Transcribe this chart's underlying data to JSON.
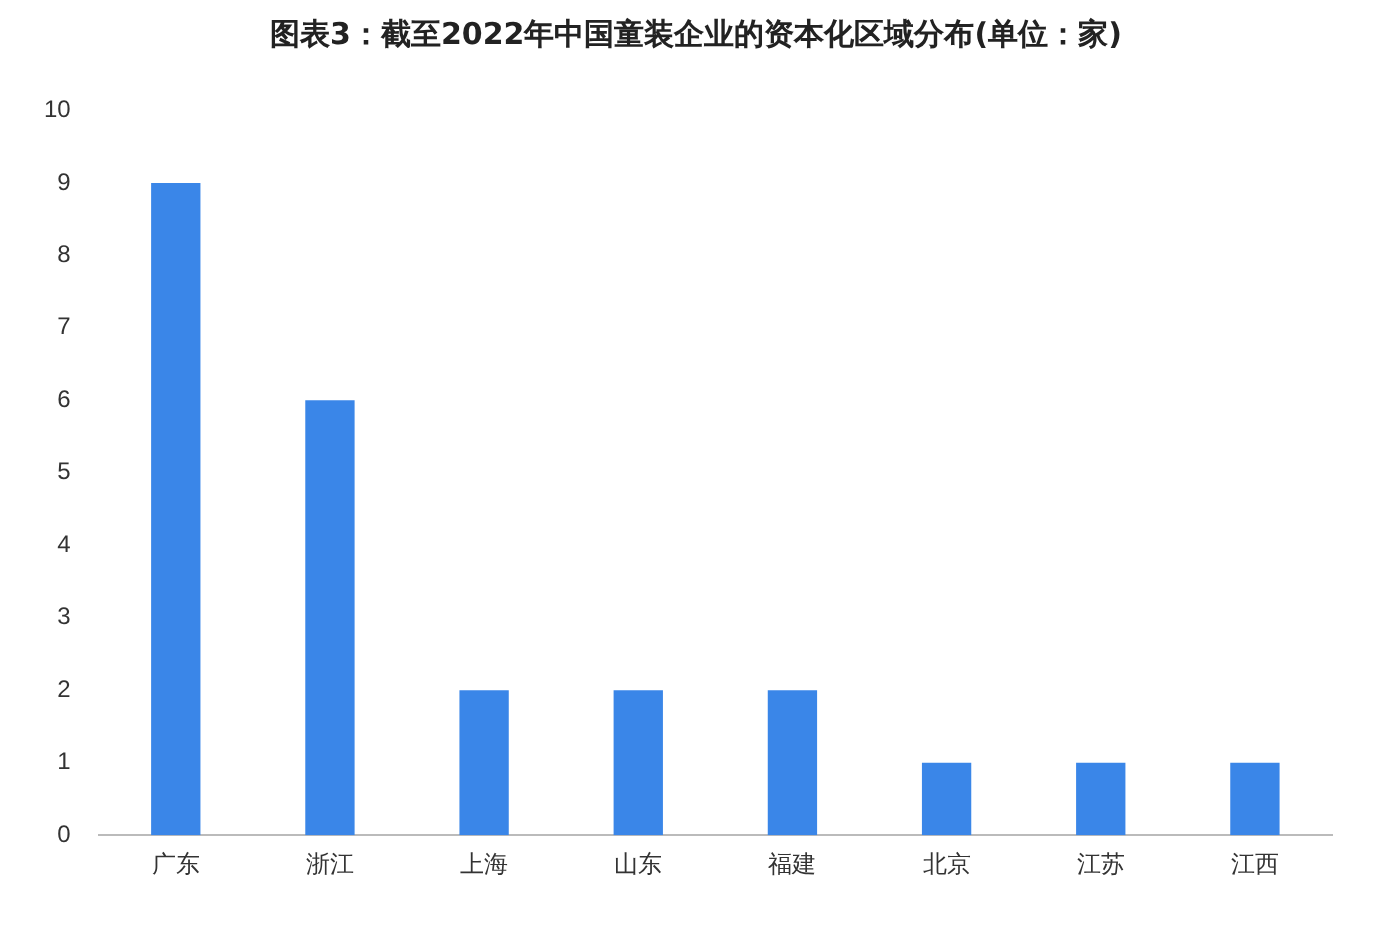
{
  "chart_data": {
    "type": "bar",
    "title": "图表3：截至2022年中国童装企业的资本化区域分布(单位：家)",
    "categories": [
      "广东",
      "浙江",
      "上海",
      "山东",
      "福建",
      "北京",
      "江苏",
      "江西"
    ],
    "values": [
      9,
      6,
      2,
      2,
      2,
      1,
      1,
      1
    ],
    "color": "#3a86e8",
    "ylim": [
      0,
      10
    ],
    "yticks": [
      0,
      1,
      2,
      3,
      4,
      5,
      6,
      7,
      8,
      9,
      10
    ],
    "grid": false,
    "legend": false
  }
}
